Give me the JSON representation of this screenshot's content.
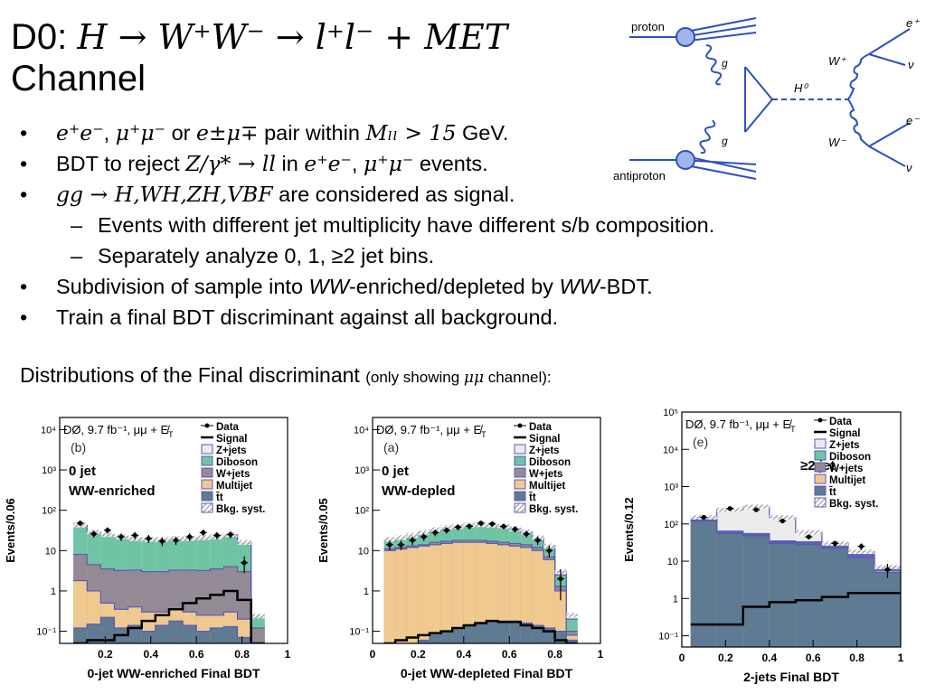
{
  "title": {
    "prefix": "D0: ",
    "math": "H → W⁺W⁻ → l⁺l⁻ + MET",
    "line2": "Channel"
  },
  "feynman": {
    "proton": "proton",
    "antiproton": "antiproton",
    "g1": "g",
    "g2": "g",
    "h0": "H⁰",
    "wplus": "W⁺",
    "wminus": "W⁻",
    "eplus": "e⁺",
    "eminus": "e⁻",
    "nu1": "ν",
    "nu2": "ν"
  },
  "bullets": [
    {
      "pre": "",
      "m1": "e⁺e⁻",
      "sep1": ", ",
      "m2": "μ⁺μ⁻",
      "mid": " or ",
      "m3": "e±μ∓",
      "tail": " pair within ",
      "m4": "Mₗₗ > 15",
      "end": " GeV."
    },
    {
      "pre": "BDT to reject ",
      "m1": "Z/γ* → ll",
      "sep1": " in ",
      "m2": "e⁺e⁻",
      "mid": ", ",
      "m3": "μ⁺μ⁻",
      "tail": " events.",
      "m4": "",
      "end": ""
    },
    {
      "pre": "",
      "m1": "gg → H,WH,ZH,VBF",
      "sep1": " are considered as signal.",
      "m2": "",
      "mid": "",
      "m3": "",
      "tail": "",
      "m4": "",
      "end": ""
    }
  ],
  "subbullets": [
    "Events with different jet multiplicity have different s/b composition.",
    "Separately analyze 0, 1, ≥2 jet bins."
  ],
  "bullets2": {
    "b4_pre": "Subdivision of sample into ",
    "b4_ww1": "WW",
    "b4_mid": "-enriched/depleted by ",
    "b4_ww2": "WW",
    "b4_end": "-BDT.",
    "b5": "Train a final BDT discriminant against all background."
  },
  "bullet_symbol": "•",
  "dash_symbol": "–",
  "distributions": {
    "main": "Distributions of the Final discriminant ",
    "small_pre": "(only showing ",
    "small_math": "μμ",
    "small_end": " channel):"
  },
  "legend": {
    "items": [
      "Data",
      "Signal",
      "Z+jets",
      "Diboson",
      "W+jets",
      "Multijet",
      "t̄t",
      "Bkg. syst."
    ],
    "colors": {
      "zjets": "#ececec",
      "diboson": "#6fc4a4",
      "wjets": "#938a95",
      "multijet": "#efc98f",
      "ttbar": "#5f7a93",
      "signal": "#000000",
      "bkgsyst": "#cccccc",
      "outline": "#5a5ab8"
    }
  },
  "chart_data": [
    {
      "type": "area",
      "panel_tag": "(b)",
      "experiment": "DØ, 9.7 fb⁻¹, μμ + E̸",
      "experiment_sub": "T",
      "annotation_line1": "0 jet",
      "annotation_line2": "WW-enriched",
      "xlabel": "0-jet WW-enriched Final BDT",
      "ylabel": "Events/0.06",
      "log_y": true,
      "ylim": [
        0.05,
        20000
      ],
      "xlim": [
        0,
        1
      ],
      "xticks": [
        "0.2",
        "0.4",
        "0.6",
        "0.8",
        "1"
      ],
      "yticks": [
        "10⁻¹",
        "1",
        "10",
        "10²",
        "10³",
        "10⁴"
      ],
      "bin_edges": [
        0.06,
        0.12,
        0.18,
        0.24,
        0.3,
        0.36,
        0.42,
        0.48,
        0.54,
        0.6,
        0.66,
        0.72,
        0.78,
        0.84,
        0.9
      ],
      "stack": {
        "ttbar": [
          0.12,
          0.15,
          0.22,
          0.12,
          0.14,
          0.1,
          0.14,
          0.18,
          0.14,
          0.1,
          0.12,
          0.13,
          0.07,
          0.03
        ],
        "multijet": [
          1.8,
          1.0,
          0.5,
          0.35,
          0.4,
          0.3,
          0.3,
          0.35,
          0.3,
          0.25,
          0.25,
          0.3,
          0.2,
          0.02
        ],
        "wjets": [
          8,
          4.5,
          3.5,
          3.2,
          3.3,
          3.0,
          3.0,
          3.3,
          3.3,
          3.2,
          3.5,
          4.0,
          3.0,
          0.12
        ],
        "diboson": [
          42,
          28,
          24,
          21,
          19,
          18,
          18,
          19,
          19,
          20,
          21,
          24,
          15,
          0.22
        ],
        "zjets": [
          43,
          29,
          25,
          22,
          20,
          19,
          19,
          20,
          20,
          21,
          22,
          25,
          16,
          0.24
        ]
      },
      "signal": [
        0.05,
        0.06,
        0.06,
        0.08,
        0.12,
        0.18,
        0.25,
        0.35,
        0.5,
        0.65,
        0.8,
        1.0,
        0.6,
        0.03
      ],
      "data_x": [
        0.09,
        0.15,
        0.21,
        0.27,
        0.33,
        0.39,
        0.45,
        0.51,
        0.57,
        0.63,
        0.69,
        0.75,
        0.81
      ],
      "data_y": [
        48,
        26,
        32,
        22,
        24,
        20,
        17,
        18,
        22,
        28,
        24,
        25,
        5
      ]
    },
    {
      "type": "area",
      "panel_tag": "(a)",
      "experiment": "DØ, 9.7 fb⁻¹, μμ + E̸",
      "experiment_sub": "T",
      "annotation_line1": "0 jet",
      "annotation_line2": "WW-depled",
      "xlabel": "0-jet WW-depleted Final BDT",
      "ylabel": "Events/0.05",
      "log_y": true,
      "ylim": [
        0.05,
        20000
      ],
      "xlim": [
        0,
        1
      ],
      "xticks": [
        "0",
        "0.2",
        "0.4",
        "0.6",
        "0.8",
        "1"
      ],
      "yticks": [
        "10⁻¹",
        "1",
        "10",
        "10²",
        "10³",
        "10⁴"
      ],
      "bin_edges": [
        0.05,
        0.1,
        0.15,
        0.2,
        0.25,
        0.3,
        0.35,
        0.4,
        0.45,
        0.5,
        0.55,
        0.6,
        0.65,
        0.7,
        0.75,
        0.8,
        0.85,
        0.9
      ],
      "stack": {
        "ttbar": [
          0.04,
          0.05,
          0.05,
          0.06,
          0.08,
          0.1,
          0.12,
          0.14,
          0.16,
          0.18,
          0.18,
          0.18,
          0.16,
          0.14,
          0.12,
          0.1,
          0.06
        ],
        "multijet": [
          10,
          11,
          12,
          13,
          14,
          15,
          16,
          16,
          16,
          15,
          14,
          13,
          12,
          10,
          6,
          1,
          0.08
        ],
        "wjets": [
          11,
          12,
          13,
          14,
          16,
          17,
          18,
          18,
          18,
          17,
          16,
          15,
          14,
          12,
          7,
          1.3,
          0.1
        ],
        "diboson": [
          17,
          19,
          22,
          25,
          30,
          34,
          37,
          40,
          41,
          40,
          37,
          33,
          27,
          19,
          12,
          2.5,
          0.2
        ],
        "zjets": [
          19,
          21,
          24,
          28,
          33,
          37,
          40,
          43,
          44,
          43,
          40,
          35,
          29,
          21,
          13,
          3,
          0.25
        ]
      },
      "signal": [
        0.05,
        0.06,
        0.07,
        0.08,
        0.09,
        0.1,
        0.12,
        0.14,
        0.16,
        0.18,
        0.17,
        0.17,
        0.14,
        0.12,
        0.1,
        0.06,
        0.04
      ],
      "data_x": [
        0.075,
        0.125,
        0.175,
        0.225,
        0.275,
        0.325,
        0.375,
        0.425,
        0.475,
        0.525,
        0.575,
        0.625,
        0.675,
        0.725,
        0.775,
        0.825
      ],
      "data_y": [
        14,
        14,
        18,
        22,
        28,
        32,
        38,
        40,
        48,
        46,
        40,
        34,
        26,
        18,
        10,
        2
      ]
    },
    {
      "type": "area",
      "panel_tag": "(e)",
      "experiment": "DØ, 9.7 fb⁻¹, μμ + E̸",
      "experiment_sub": "T",
      "annotation_line1": "≥2 jet",
      "annotation_line2": "",
      "xlabel": "2-jets Final BDT",
      "ylabel": "Events/0.12",
      "log_y": true,
      "ylim": [
        0.05,
        100000
      ],
      "xlim": [
        0,
        1
      ],
      "xticks": [
        "0",
        "0.2",
        "0.4",
        "0.6",
        "0.8",
        "1"
      ],
      "yticks": [
        "10⁻¹",
        "1",
        "10",
        "10²",
        "10³",
        "10⁴",
        "10⁵"
      ],
      "bin_edges": [
        0.04,
        0.16,
        0.28,
        0.4,
        0.52,
        0.64,
        0.76,
        0.88,
        1.0
      ],
      "stack": {
        "ttbar": [
          120,
          55,
          48,
          30,
          28,
          22,
          12,
          5
        ],
        "multijet": [
          122,
          56,
          49,
          31,
          29,
          23,
          13,
          5.5
        ],
        "wjets": [
          128,
          60,
          52,
          33,
          31,
          24,
          14,
          6
        ],
        "diboson": [
          135,
          64,
          55,
          35,
          33,
          26,
          15,
          6.5
        ],
        "zjets": [
          150,
          240,
          290,
          150,
          60,
          30,
          18,
          7
        ]
      },
      "signal": [
        0.2,
        0.2,
        0.6,
        0.8,
        0.9,
        1.1,
        1.4,
        1.4
      ],
      "data_x": [
        0.1,
        0.22,
        0.34,
        0.46,
        0.58,
        0.7,
        0.82,
        0.94
      ],
      "data_y": [
        150,
        260,
        240,
        120,
        45,
        30,
        25,
        6
      ]
    }
  ]
}
